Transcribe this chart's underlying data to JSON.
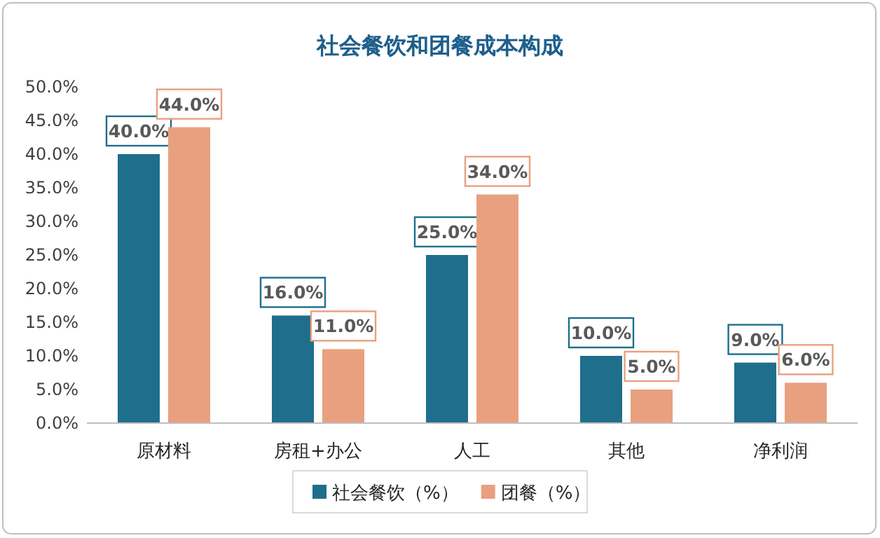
{
  "chart_data": {
    "type": "bar",
    "title": "社会餐饮和团餐成本构成",
    "categories": [
      "原材料",
      "房租+办公",
      "人工",
      "其他",
      "净利润"
    ],
    "series": [
      {
        "name": "社会餐饮（%）",
        "color": "#1f6e8c",
        "values": [
          40,
          16,
          25,
          10,
          9
        ],
        "value_labels": [
          "40.0%",
          "16.0%",
          "25.0%",
          "10.0%",
          "9.0%"
        ]
      },
      {
        "name": "团餐（%）",
        "color": "#e9a07f",
        "values": [
          44,
          11,
          34,
          5,
          6
        ],
        "value_labels": [
          "44.0%",
          "11.0%",
          "34.0%",
          "5.0%",
          "6.0%"
        ]
      }
    ],
    "ylim": [
      0,
      50
    ],
    "yticks": [
      {
        "value": 0,
        "label": "0.0%"
      },
      {
        "value": 5,
        "label": "5.0%"
      },
      {
        "value": 10,
        "label": "10.0%"
      },
      {
        "value": 15,
        "label": "15.0%"
      },
      {
        "value": 20,
        "label": "20.0%"
      },
      {
        "value": 25,
        "label": "25.0%"
      },
      {
        "value": 30,
        "label": "30.0%"
      },
      {
        "value": 35,
        "label": "35.0%"
      },
      {
        "value": 40,
        "label": "40.0%"
      },
      {
        "value": 45,
        "label": "45.0%"
      },
      {
        "value": 50,
        "label": "50.0%"
      }
    ],
    "grid": false,
    "legend": "bottom"
  }
}
